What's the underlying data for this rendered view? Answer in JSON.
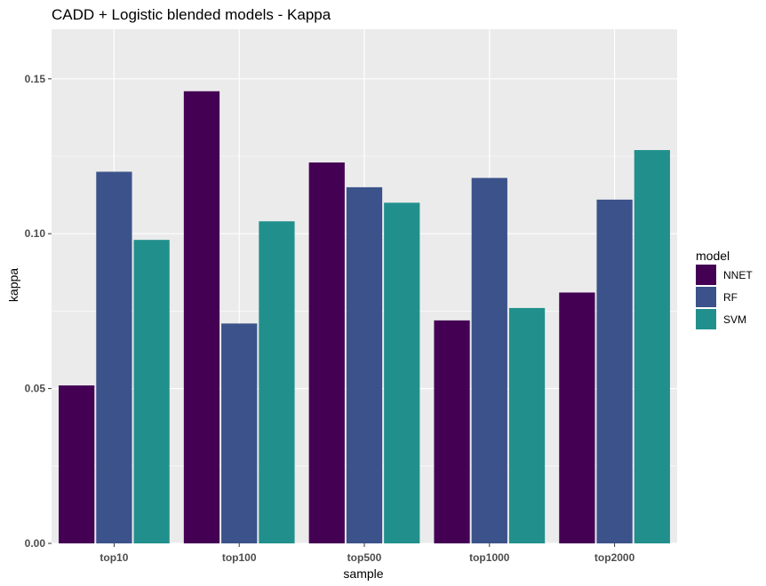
{
  "chart_data": {
    "type": "bar",
    "title": "CADD + Logistic blended models - Kappa",
    "xlabel": "sample",
    "ylabel": "kappa",
    "categories": [
      "top10",
      "top100",
      "top500",
      "top1000",
      "top2000"
    ],
    "series": [
      {
        "name": "NNET",
        "color": "#440154",
        "values": [
          0.051,
          0.146,
          0.123,
          0.072,
          0.081
        ]
      },
      {
        "name": "RF",
        "color": "#3b528b",
        "values": [
          0.12,
          0.071,
          0.115,
          0.118,
          0.111
        ]
      },
      {
        "name": "SVM",
        "color": "#21908c",
        "values": [
          0.098,
          0.104,
          0.11,
          0.076,
          0.127
        ]
      }
    ],
    "ylim": [
      0,
      0.166
    ],
    "yticks": [
      0.0,
      0.05,
      0.1,
      0.15
    ],
    "ytick_labels": [
      "0.00",
      "0.05",
      "0.10",
      "0.15"
    ],
    "grid": true,
    "legend": {
      "title": "model",
      "position": "right"
    },
    "panel_background": "#ebebeb",
    "gridline_color": "#ffffff"
  }
}
